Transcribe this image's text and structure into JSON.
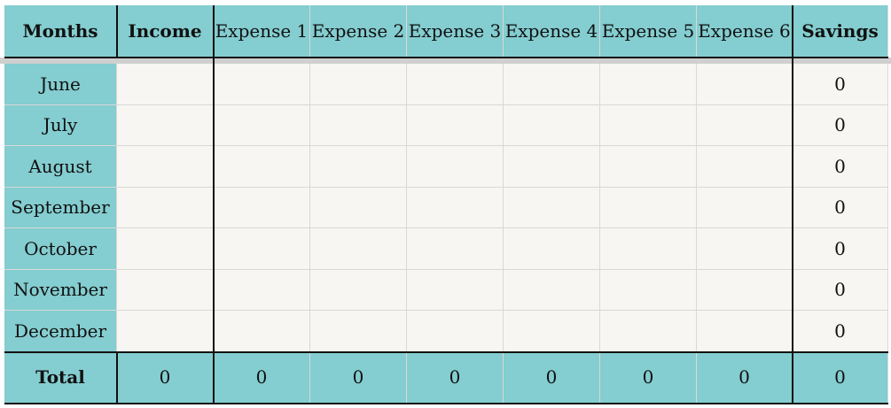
{
  "table": {
    "header": [
      "Months",
      "Income",
      "Expense 1",
      "Expense 2",
      "Expense 3",
      "Expense 4",
      "Expense 5",
      "Expense 6",
      "Savings"
    ],
    "rows": [
      {
        "month": "June",
        "savings": 0
      },
      {
        "month": "July",
        "savings": 0
      },
      {
        "month": "August",
        "savings": 0
      },
      {
        "month": "September",
        "savings": 0
      },
      {
        "month": "October",
        "savings": 0
      },
      {
        "month": "November",
        "savings": 0
      },
      {
        "month": "December",
        "savings": 0
      }
    ],
    "total": {
      "label": "Total",
      "values": [
        0,
        0,
        0,
        0,
        0,
        0,
        0,
        0
      ]
    }
  }
}
